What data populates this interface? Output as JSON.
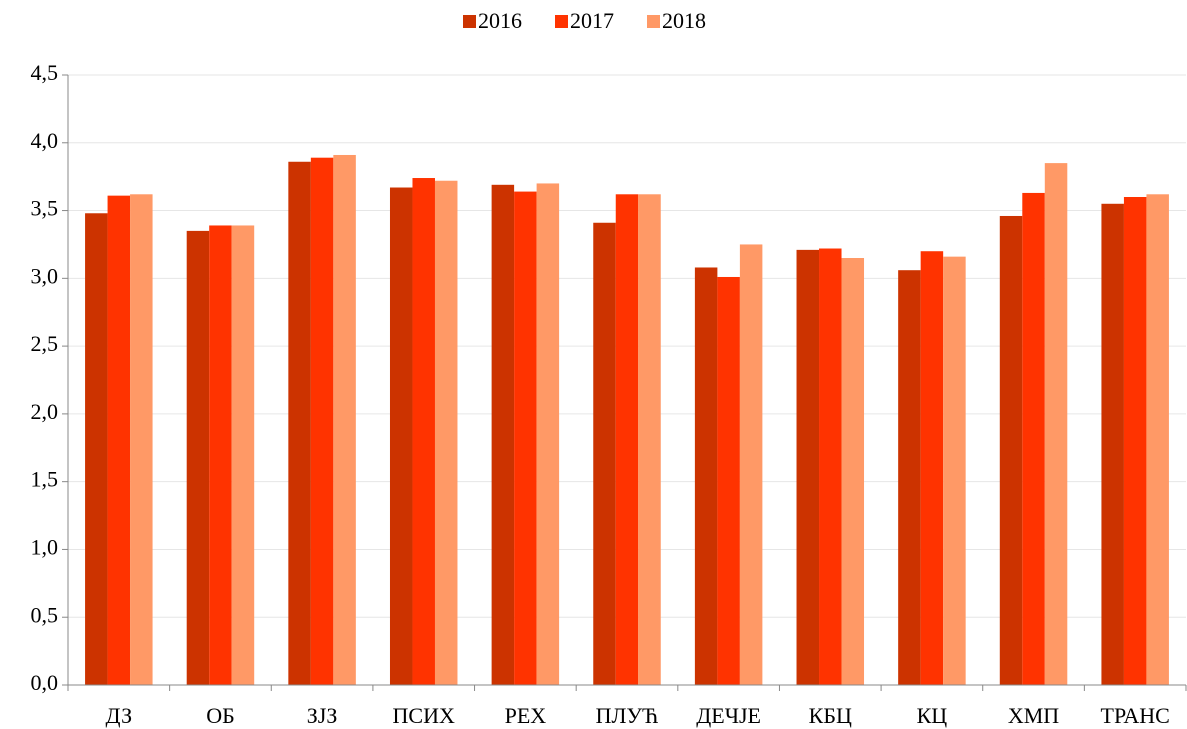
{
  "chart_data": {
    "type": "bar",
    "categories": [
      "ДЗ",
      "ОБ",
      "ЗЈЗ",
      "ПСИХ",
      "РЕХ",
      "ПЛУЋ",
      "ДЕЧЈЕ",
      "КБЦ",
      "КЦ",
      "ХМП",
      "ТРАНС"
    ],
    "series": [
      {
        "name": "2016",
        "color": "#cc3300",
        "values": [
          3.48,
          3.35,
          3.86,
          3.67,
          3.69,
          3.41,
          3.08,
          3.21,
          3.06,
          3.46,
          3.55
        ]
      },
      {
        "name": "2017",
        "color": "#ff3300",
        "values": [
          3.61,
          3.39,
          3.89,
          3.74,
          3.64,
          3.62,
          3.01,
          3.22,
          3.2,
          3.63,
          3.6
        ]
      },
      {
        "name": "2018",
        "color": "#ff9966",
        "values": [
          3.62,
          3.39,
          3.91,
          3.72,
          3.7,
          3.62,
          3.25,
          3.15,
          3.16,
          3.85,
          3.62
        ]
      }
    ],
    "ylim": [
      0,
      4.5
    ],
    "yticks": [
      {
        "value": 0,
        "label": "0,0"
      },
      {
        "value": 0.5,
        "label": "0,5"
      },
      {
        "value": 1,
        "label": "1,0"
      },
      {
        "value": 1.5,
        "label": "1,5"
      },
      {
        "value": 2,
        "label": "2,0"
      },
      {
        "value": 2.5,
        "label": "2,5"
      },
      {
        "value": 3,
        "label": "3,0"
      },
      {
        "value": 3.5,
        "label": "3,5"
      },
      {
        "value": 4,
        "label": "4,0"
      },
      {
        "value": 4.5,
        "label": "4,5"
      }
    ],
    "grid": true,
    "legend": "top"
  }
}
